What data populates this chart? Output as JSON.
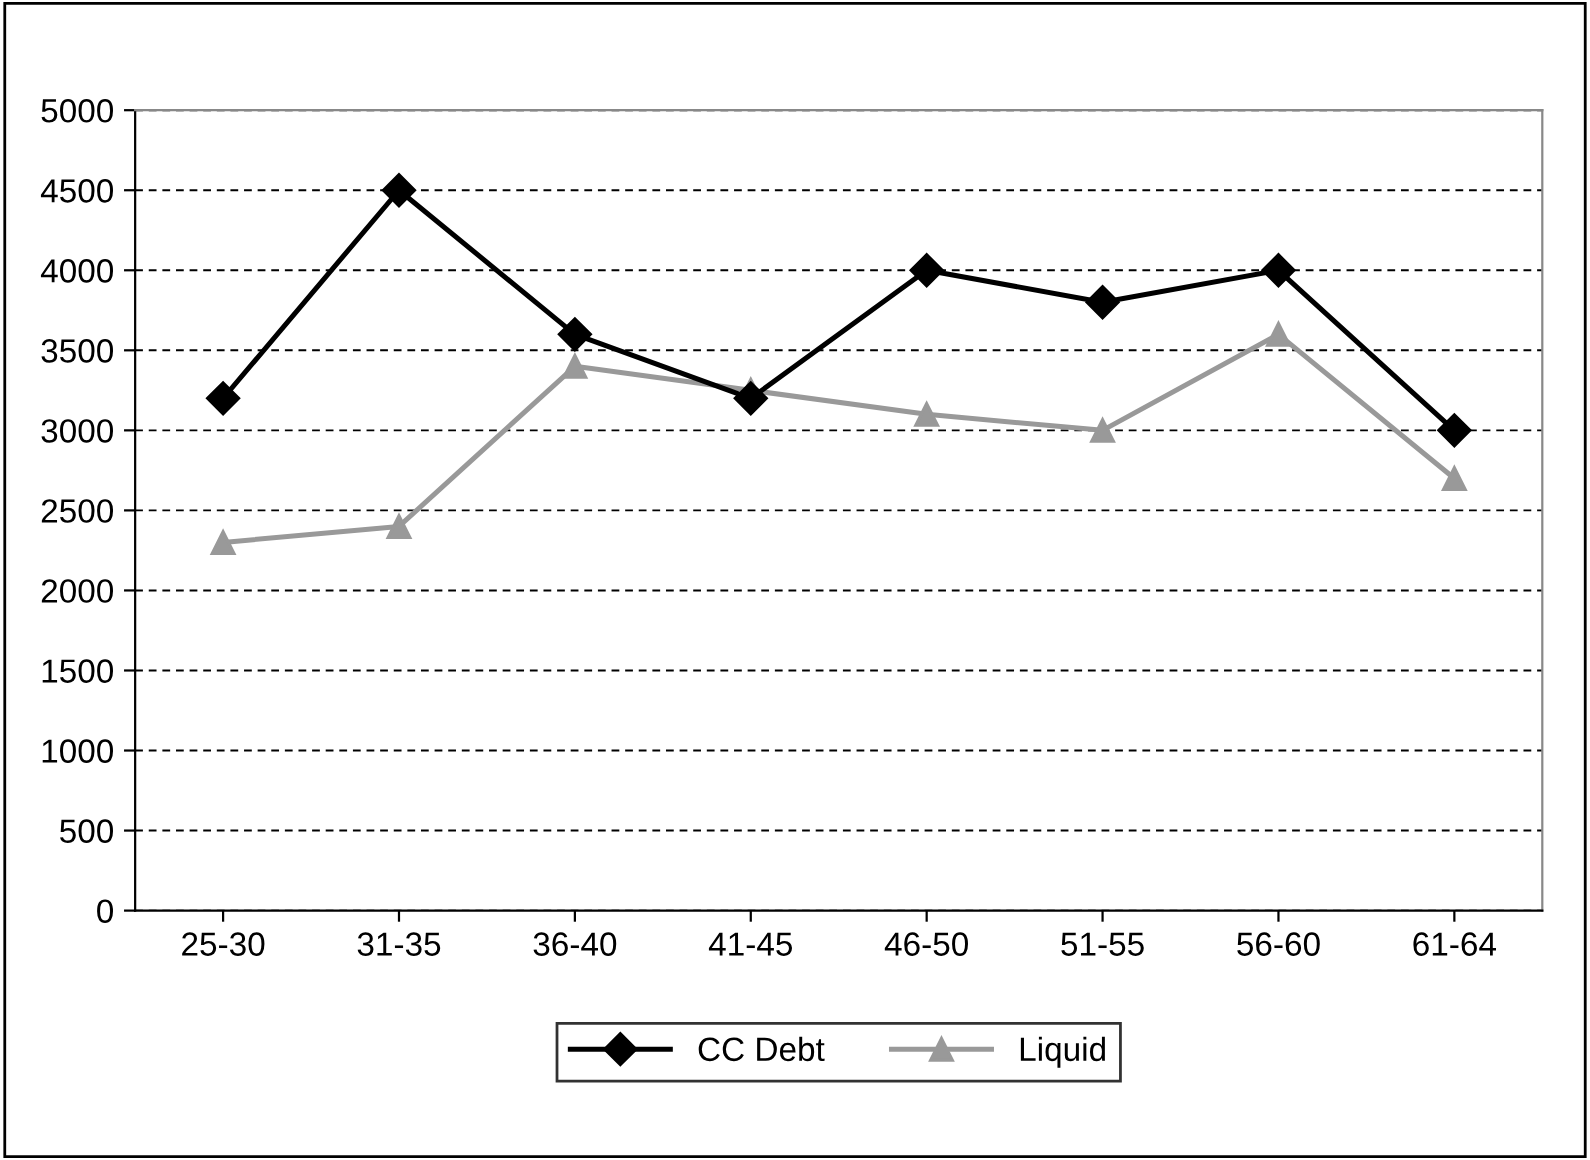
{
  "chart_data": {
    "type": "line",
    "categories": [
      "25-30",
      "31-35",
      "36-40",
      "41-45",
      "46-50",
      "51-55",
      "56-60",
      "61-64"
    ],
    "series": [
      {
        "name": "CC Debt",
        "color": "#000000",
        "marker": "diamond",
        "values": [
          3200,
          4500,
          3600,
          3200,
          4000,
          3800,
          4000,
          3000
        ]
      },
      {
        "name": "Liquid",
        "color": "#999999",
        "marker": "triangle",
        "values": [
          2300,
          2400,
          3400,
          3250,
          3100,
          3000,
          3600,
          2700
        ]
      }
    ],
    "ylim": [
      0,
      5000
    ],
    "yticks": [
      0,
      500,
      1000,
      1500,
      2000,
      2500,
      3000,
      3500,
      4000,
      4500,
      5000
    ],
    "grid": "y",
    "legend": "bottom",
    "line_style": "solid"
  }
}
